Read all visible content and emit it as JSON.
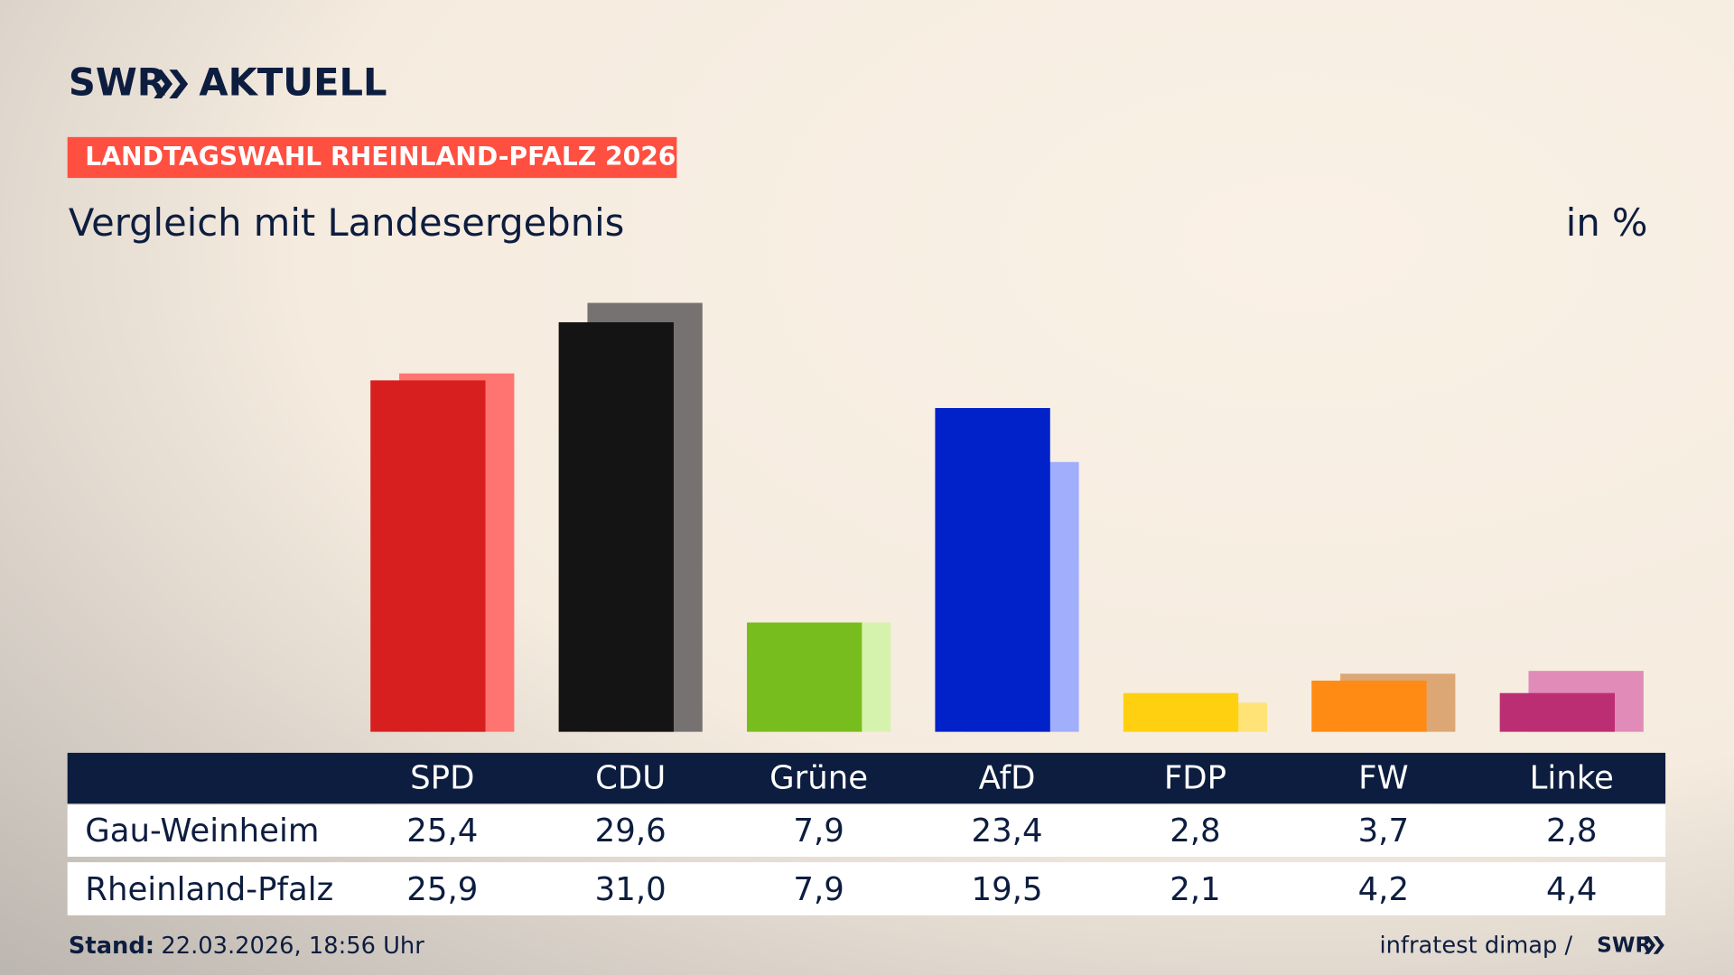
{
  "header": {
    "brand": "SWR",
    "brand_sub": "AKTUELL",
    "badge": "LANDTAGSWAHL RHEINLAND-PFALZ 2026"
  },
  "chart_data": {
    "type": "bar",
    "title": "Vergleich mit Landesergebnis",
    "unit_label": "in %",
    "categories": [
      "SPD",
      "CDU",
      "Grüne",
      "AfD",
      "FDP",
      "FW",
      "Linke"
    ],
    "series": [
      {
        "name": "Gau-Weinheim",
        "colors": [
          "#d81f1f",
          "#141414",
          "#78bd1e",
          "#0022c8",
          "#ffd00f",
          "#ff8a14",
          "#bc2e74"
        ],
        "values": [
          25.4,
          29.6,
          7.9,
          23.4,
          2.8,
          3.7,
          2.8
        ],
        "value_labels": [
          "25,4",
          "29,6",
          "7,9",
          "23,4",
          "2,8",
          "3,7",
          "2,8"
        ]
      },
      {
        "name": "Rheinland-Pfalz",
        "colors": [
          "#ff7470",
          "#767271",
          "#d6f3ae",
          "#a0aefc",
          "#ffe377",
          "#dca774",
          "#e08bb8"
        ],
        "values": [
          25.9,
          31.0,
          7.9,
          19.5,
          2.1,
          4.2,
          4.4
        ],
        "value_labels": [
          "25,9",
          "31,0",
          "7,9",
          "19,5",
          "2,1",
          "4,2",
          "4,4"
        ]
      }
    ]
  },
  "footer": {
    "stand_label": "Stand:",
    "stand_value": "22.03.2026, 18:56 Uhr",
    "source": "infratest dimap /",
    "source_brand": "SWR"
  }
}
